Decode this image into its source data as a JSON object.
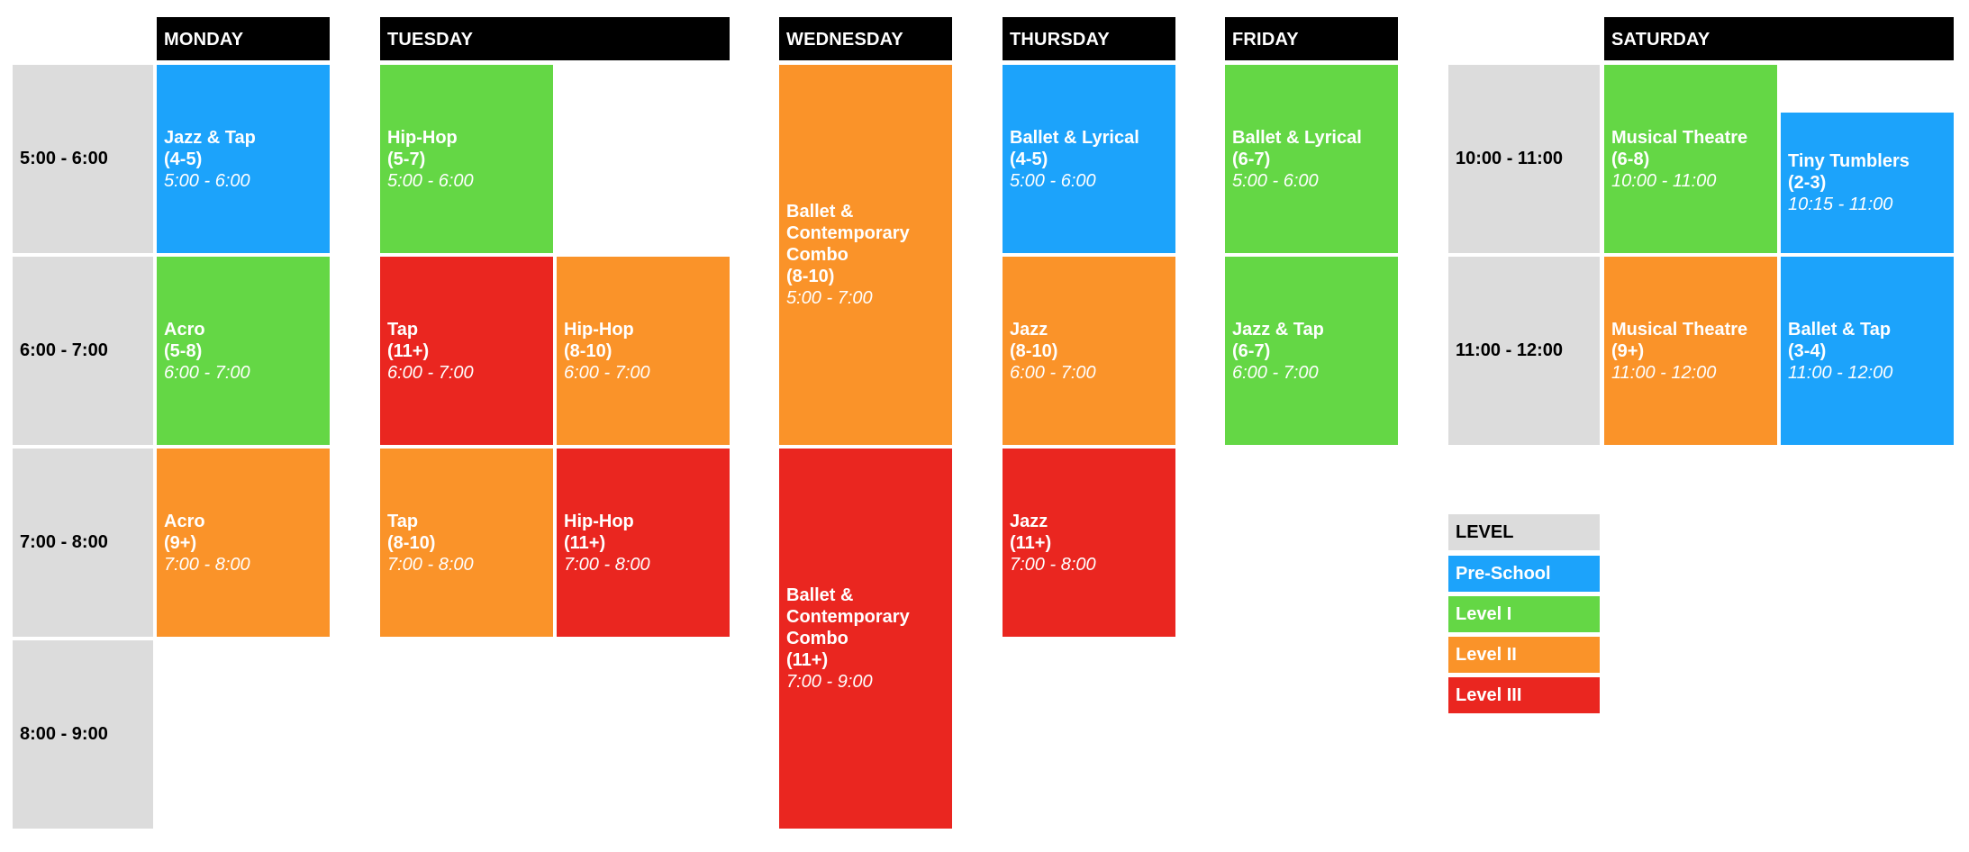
{
  "days": {
    "monday": "MONDAY",
    "tuesday": "TUESDAY",
    "wednesday": "WEDNESDAY",
    "thursday": "THURSDAY",
    "friday": "FRIDAY",
    "saturday": "SATURDAY"
  },
  "weekday_times": [
    "5:00 - 6:00",
    "6:00 - 7:00",
    "7:00 - 8:00",
    "8:00 - 9:00"
  ],
  "saturday_times": [
    "10:00 - 11:00",
    "11:00 - 12:00"
  ],
  "classes": {
    "mon_1": {
      "name": "Jazz & Tap",
      "age": "(4-5)",
      "time": "5:00 - 6:00",
      "level": "pre"
    },
    "mon_2": {
      "name": "Acro",
      "age": "(5-8)",
      "time": "6:00 - 7:00",
      "level": "l1"
    },
    "mon_3": {
      "name": "Acro",
      "age": "(9+)",
      "time": "7:00 - 8:00",
      "level": "l2"
    },
    "tue_1": {
      "name": "Hip-Hop",
      "age": "(5-7)",
      "time": "5:00 - 6:00",
      "level": "l1"
    },
    "tue_2a": {
      "name": "Tap",
      "age": "(11+)",
      "time": "6:00 - 7:00",
      "level": "l3"
    },
    "tue_2b": {
      "name": "Hip-Hop",
      "age": "(8-10)",
      "time": "6:00 - 7:00",
      "level": "l2"
    },
    "tue_3a": {
      "name": "Tap",
      "age": "(8-10)",
      "time": "7:00 - 8:00",
      "level": "l2"
    },
    "tue_3b": {
      "name": "Hip-Hop",
      "age": "(11+)",
      "time": "7:00 - 8:00",
      "level": "l3"
    },
    "wed_1": {
      "name1": "Ballet &",
      "name2": "Contemporary",
      "name3": "Combo",
      "age": "(8-10)",
      "time": "5:00 - 7:00",
      "level": "l2"
    },
    "wed_2": {
      "name1": "Ballet &",
      "name2": "Contemporary",
      "name3": "Combo",
      "age": "(11+)",
      "time": "7:00 - 9:00",
      "level": "l3"
    },
    "thu_1": {
      "name": "Ballet & Lyrical",
      "age": "(4-5)",
      "time": "5:00 - 6:00",
      "level": "pre"
    },
    "thu_2": {
      "name": "Jazz",
      "age": "(8-10)",
      "time": "6:00 - 7:00",
      "level": "l2"
    },
    "thu_3": {
      "name": "Jazz",
      "age": "(11+)",
      "time": "7:00 - 8:00",
      "level": "l3"
    },
    "fri_1": {
      "name": "Ballet & Lyrical",
      "age": "(6-7)",
      "time": "5:00 - 6:00",
      "level": "l1"
    },
    "fri_2": {
      "name": "Jazz & Tap",
      "age": "(6-7)",
      "time": "6:00 - 7:00",
      "level": "l1"
    },
    "sat_1a": {
      "name": "Musical Theatre",
      "age": "(6-8)",
      "time": "10:00 - 11:00",
      "level": "l1"
    },
    "sat_1b": {
      "name": "Tiny Tumblers",
      "age": "(2-3)",
      "time": "10:15 - 11:00",
      "level": "pre"
    },
    "sat_2a": {
      "name": "Musical Theatre",
      "age": "(9+)",
      "time": "11:00 - 12:00",
      "level": "l2"
    },
    "sat_2b": {
      "name": "Ballet & Tap",
      "age": "(3-4)",
      "time": "11:00 - 12:00",
      "level": "pre"
    }
  },
  "legend": {
    "title": "LEVEL",
    "items": [
      {
        "label": "Pre-School",
        "color": "#1ca3fb"
      },
      {
        "label": "Level I",
        "color": "#64d745"
      },
      {
        "label": "Level II",
        "color": "#fa9329"
      },
      {
        "label": "Level III",
        "color": "#ea2620"
      }
    ]
  },
  "colors": {
    "pre_school": "#1ca3fb",
    "level_1": "#64d745",
    "level_2": "#fa9329",
    "level_3": "#ea2620",
    "time_cell": "#dcdcdc",
    "header": "#000000"
  }
}
